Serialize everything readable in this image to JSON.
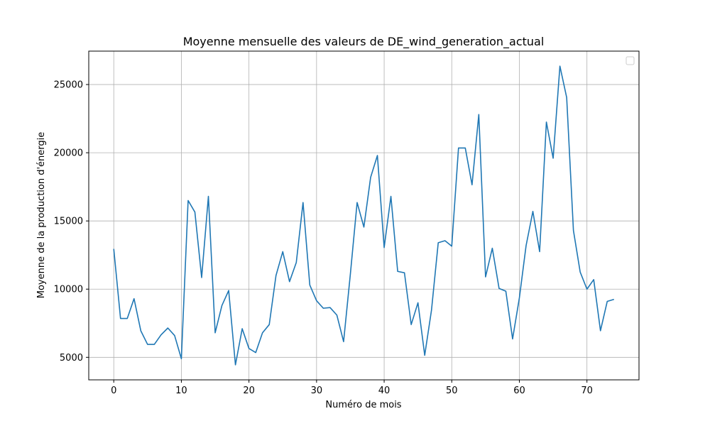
{
  "chart_data": {
    "type": "line",
    "title": "Moyenne mensuelle des valeurs de DE_wind_generation_actual",
    "xlabel": "Numéro de mois",
    "ylabel": "Moyenne de la production d'énergie",
    "xlim": [
      -3.7,
      77.7
    ],
    "ylim": [
      3350,
      27450
    ],
    "x_ticks": [
      0,
      10,
      20,
      30,
      40,
      50,
      60,
      70
    ],
    "y_ticks": [
      5000,
      10000,
      15000,
      20000,
      25000
    ],
    "grid": true,
    "legend": "upper right, empty",
    "series": [
      {
        "color": "#1f77b4",
        "x": [
          0,
          1,
          2,
          3,
          4,
          5,
          6,
          7,
          8,
          9,
          10,
          11,
          12,
          13,
          14,
          15,
          16,
          17,
          18,
          19,
          20,
          21,
          22,
          23,
          24,
          25,
          26,
          27,
          28,
          29,
          30,
          31,
          32,
          33,
          34,
          35,
          36,
          37,
          38,
          39,
          40,
          41,
          42,
          43,
          44,
          45,
          46,
          47,
          48,
          49,
          50,
          51,
          52,
          53,
          54,
          55,
          56,
          57,
          58,
          59,
          60,
          61,
          62,
          63,
          64,
          65,
          66,
          67,
          68,
          69,
          70,
          71,
          72,
          73,
          74
        ],
        "values": [
          12950,
          7850,
          7850,
          9300,
          6950,
          5950,
          5950,
          6650,
          7150,
          6600,
          4900,
          16500,
          15650,
          10850,
          16800,
          6800,
          8800,
          9900,
          4450,
          7100,
          5650,
          5350,
          6800,
          7400,
          11000,
          12750,
          10550,
          11950,
          16350,
          10300,
          9150,
          8600,
          8650,
          8100,
          6150,
          11100,
          16350,
          14550,
          18200,
          19800,
          13050,
          16800,
          11300,
          11200,
          7400,
          9000,
          5150,
          8450,
          13400,
          13550,
          13150,
          20350,
          20350,
          17650,
          22800,
          10900,
          13000,
          10050,
          9850,
          6350,
          9350,
          13200,
          15700,
          12750,
          22250,
          19600,
          26350,
          24050,
          14300,
          11250,
          10000,
          10700,
          6950,
          9100,
          9250
        ]
      }
    ]
  }
}
